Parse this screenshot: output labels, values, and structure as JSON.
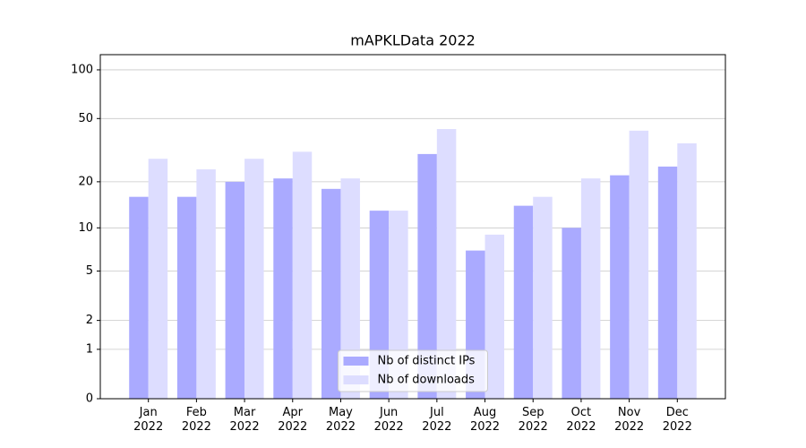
{
  "chart_data": {
    "type": "bar",
    "title": "mAPKLData 2022",
    "categories": [
      "Jan\n2022",
      "Feb\n2022",
      "Mar\n2022",
      "Apr\n2022",
      "May\n2022",
      "Jun\n2022",
      "Jul\n2022",
      "Aug\n2022",
      "Sep\n2022",
      "Oct\n2022",
      "Nov\n2022",
      "Dec\n2022"
    ],
    "series": [
      {
        "name": "Nb of distinct IPs",
        "color": "#aaaaff",
        "values": [
          16,
          16,
          20,
          21,
          18,
          13,
          30,
          7,
          14,
          10,
          22,
          25
        ]
      },
      {
        "name": "Nb of downloads",
        "color": "#ddddff",
        "values": [
          28,
          24,
          28,
          31,
          21,
          13,
          43,
          9,
          16,
          21,
          42,
          35
        ]
      }
    ],
    "yscale": "log1p",
    "ylim": [
      0,
      124
    ],
    "yticks": [
      0,
      1,
      2,
      5,
      10,
      20,
      50,
      100
    ],
    "grid": true,
    "legend": "lower center"
  }
}
